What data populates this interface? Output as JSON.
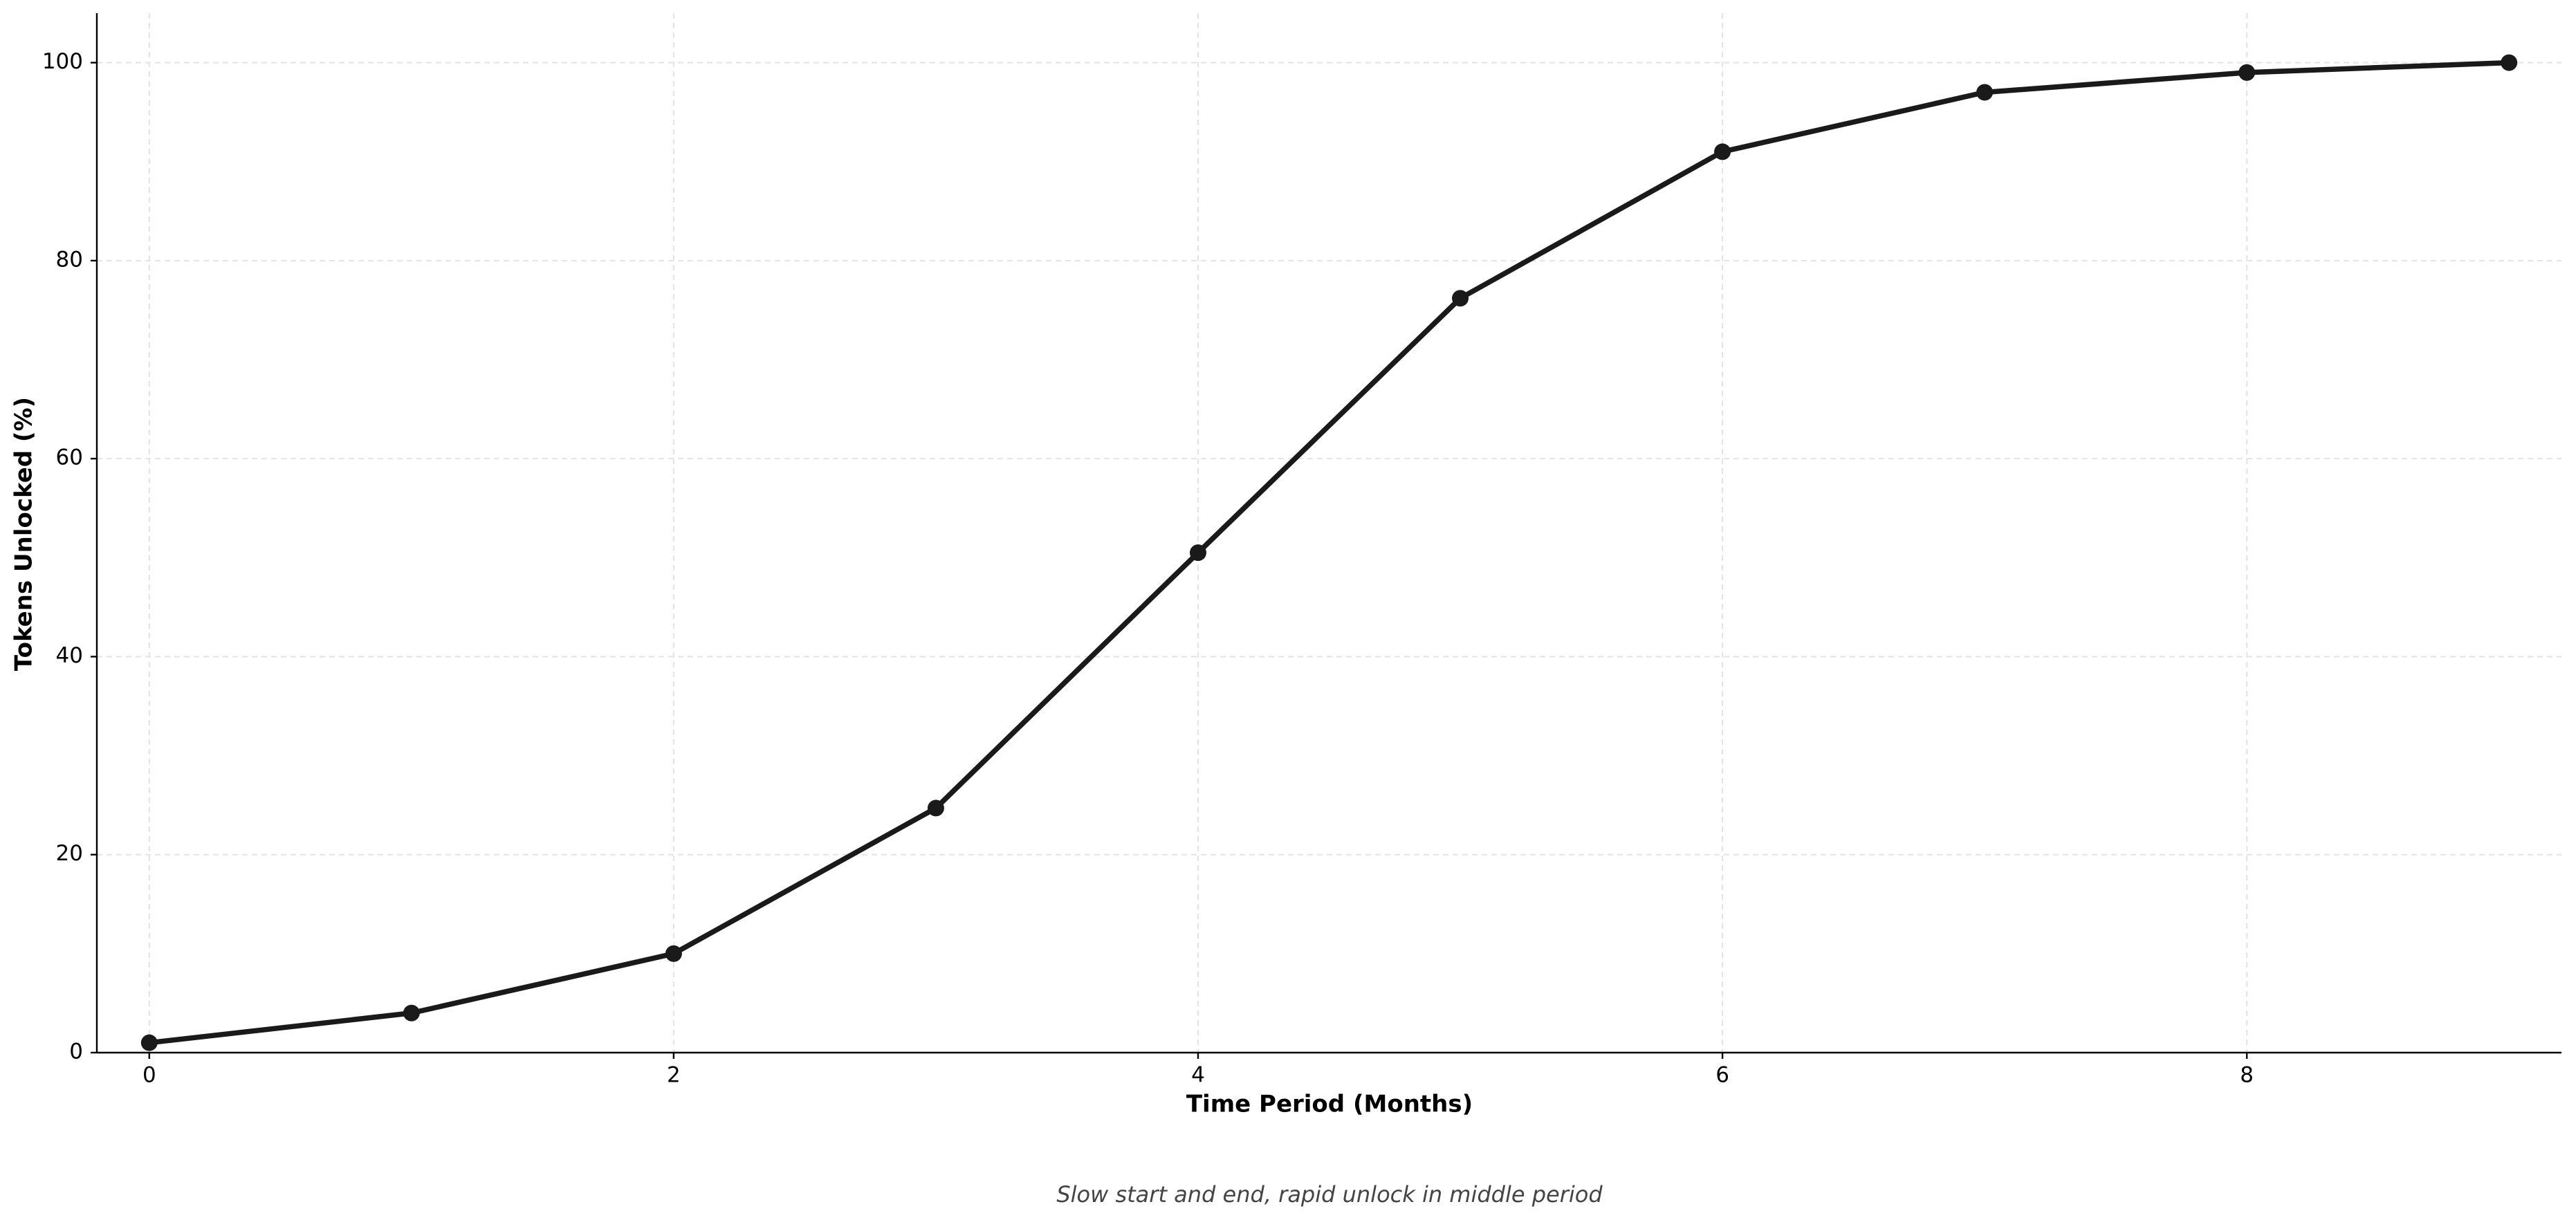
{
  "chart_data": {
    "type": "line",
    "xlabel": "Time Period (Months)",
    "ylabel": "Tokens Unlocked (%)",
    "caption": "Slow start and end, rapid unlock in middle period",
    "x": [
      0,
      1,
      2,
      3,
      4,
      5,
      6,
      7,
      8,
      9
    ],
    "series": [
      {
        "color": "#1a1a1a",
        "values": [
          1,
          4,
          10,
          24.7,
          50.5,
          76.2,
          91,
          97,
          99,
          100
        ]
      }
    ],
    "xlim": [
      -0.2,
      9.2
    ],
    "xticks": [
      0,
      2,
      4,
      6,
      8
    ],
    "ylim": [
      0,
      105
    ],
    "yticks": [
      0,
      20,
      40,
      60,
      80,
      100
    ],
    "grid": true
  }
}
